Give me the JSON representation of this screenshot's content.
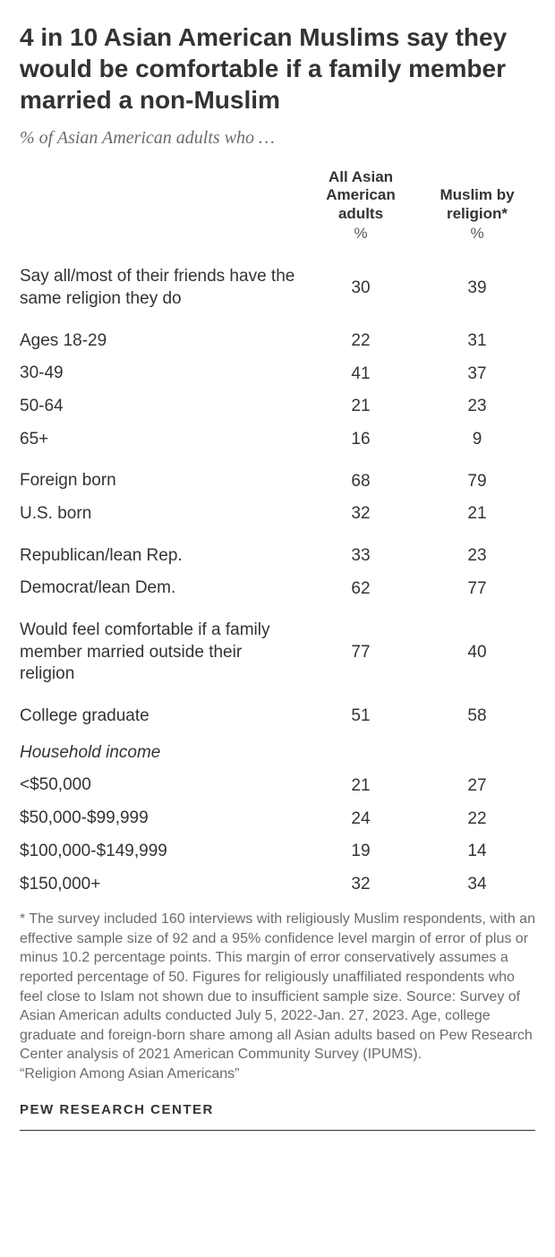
{
  "title": "4 in 10 Asian American Muslims say they would be comfortable if a family member married a non-Muslim",
  "subtitle": "% of Asian American adults who …",
  "columns": {
    "col1": "All Asian American adults",
    "col2": "Muslim by religion*",
    "unit": "%"
  },
  "rows": [
    {
      "label": "Say all/most of their friends have the same religion they do",
      "v1": "30",
      "v2": "39",
      "group_start": true
    },
    {
      "label": "Ages 18-29",
      "v1": "22",
      "v2": "31",
      "group_start": true
    },
    {
      "label": "30-49",
      "v1": "41",
      "v2": "37"
    },
    {
      "label": "50-64",
      "v1": "21",
      "v2": "23"
    },
    {
      "label": "65+",
      "v1": "16",
      "v2": "9"
    },
    {
      "label": "Foreign born",
      "v1": "68",
      "v2": "79",
      "group_start": true
    },
    {
      "label": "U.S. born",
      "v1": "32",
      "v2": "21"
    },
    {
      "label": "Republican/lean Rep.",
      "v1": "33",
      "v2": "23",
      "group_start": true
    },
    {
      "label": "Democrat/lean Dem.",
      "v1": "62",
      "v2": "77"
    },
    {
      "label": "Would feel comfortable if a family member married outside their religion",
      "v1": "77",
      "v2": "40",
      "group_start": true
    },
    {
      "label": "College graduate",
      "v1": "51",
      "v2": "58",
      "group_start": true
    },
    {
      "label": "Household income",
      "section_header": true
    },
    {
      "label": "<$50,000",
      "v1": "21",
      "v2": "27"
    },
    {
      "label": "$50,000-$99,999",
      "v1": "24",
      "v2": "22"
    },
    {
      "label": "$100,000-$149,999",
      "v1": "19",
      "v2": "14"
    },
    {
      "label": "$150,000+",
      "v1": "32",
      "v2": "34"
    }
  ],
  "footnote": "* The survey included 160 interviews with religiously Muslim respondents, with an effective sample size of 92 and a 95% confidence level margin of error of plus or minus 10.2 percentage points. This margin of error conservatively assumes a reported percentage of 50. Figures for religiously unaffiliated respondents who feel close to Islam not shown due to insufficient sample size. Source: Survey of Asian American adults conducted July 5, 2022-Jan. 27, 2023. Age, college graduate and foreign-born share among all Asian adults based on Pew Research Center analysis of 2021 American Community Survey (IPUMS).",
  "attribution": "“Religion Among Asian Americans”",
  "source_org": "PEW RESEARCH CENTER",
  "style": {
    "title_fontsize": 28,
    "subtitle_fontsize": 20,
    "body_fontsize": 19,
    "footnote_fontsize": 16,
    "text_color": "#333333",
    "muted_color": "#6b6b6b",
    "background": "#ffffff"
  }
}
